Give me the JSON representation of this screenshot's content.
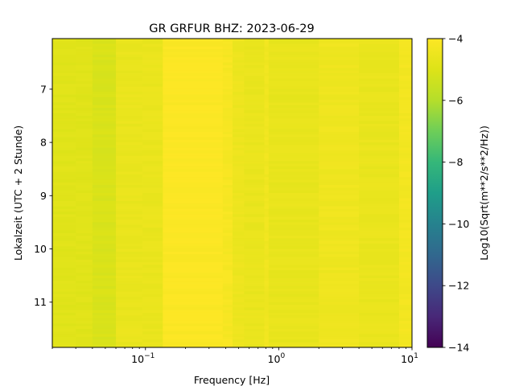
{
  "chart_data": {
    "type": "heatmap",
    "title": "GR GRFUR  BHZ: 2023-06-29",
    "xlabel": "Frequency [Hz]",
    "ylabel": "Lokalzeit (UTC + 2 Stunde)",
    "x_scale": "log",
    "xlim": [
      0.02,
      10
    ],
    "ylim": [
      11.85,
      6.05
    ],
    "y_inverted": true,
    "x_ticks": [
      {
        "value": 0.1,
        "base": "10",
        "exp": "−1"
      },
      {
        "value": 1,
        "base": "10",
        "exp": "0"
      },
      {
        "value": 10,
        "base": "10",
        "exp": "1"
      }
    ],
    "y_ticks": [
      {
        "value": 7,
        "label": "7"
      },
      {
        "value": 8,
        "label": "8"
      },
      {
        "value": 9,
        "label": "9"
      },
      {
        "value": 10,
        "label": "10"
      },
      {
        "value": 11,
        "label": "11"
      }
    ],
    "colormap": "viridis",
    "colorbar": {
      "label": "Log10(Sqrt(m**2/s**2/Hz))",
      "range": [
        -14,
        -4
      ],
      "ticks": [
        {
          "value": -4,
          "label": "−4"
        },
        {
          "value": -6,
          "label": "−6"
        },
        {
          "value": -8,
          "label": "−8"
        },
        {
          "value": -10,
          "label": "−10"
        },
        {
          "value": -12,
          "label": "−12"
        },
        {
          "value": -14,
          "label": "−14"
        }
      ]
    },
    "frequency_bands": [
      {
        "f_min": 0.02,
        "f_max": 0.03,
        "level": -4.9
      },
      {
        "f_min": 0.03,
        "f_max": 0.04,
        "level": -4.9
      },
      {
        "f_min": 0.04,
        "f_max": 0.06,
        "level": -5.1
      },
      {
        "f_min": 0.06,
        "f_max": 0.095,
        "level": -4.6
      },
      {
        "f_min": 0.095,
        "f_max": 0.135,
        "level": -4.6
      },
      {
        "f_min": 0.135,
        "f_max": 0.38,
        "level": -4.05
      },
      {
        "f_min": 0.38,
        "f_max": 0.45,
        "level": -4.2
      },
      {
        "f_min": 0.45,
        "f_max": 0.55,
        "level": -4.5
      },
      {
        "f_min": 0.55,
        "f_max": 0.78,
        "level": -4.6
      },
      {
        "f_min": 0.78,
        "f_max": 0.84,
        "level": -4.4
      },
      {
        "f_min": 0.84,
        "f_max": 2.0,
        "level": -4.65
      },
      {
        "f_min": 2.0,
        "f_max": 4.0,
        "level": -4.45
      },
      {
        "f_min": 4.0,
        "f_max": 8.0,
        "level": -4.6
      },
      {
        "f_min": 8.0,
        "f_max": 10.0,
        "level": -4.3
      }
    ],
    "time_rows": 116,
    "time_start": 6.05,
    "time_end": 11.85
  }
}
